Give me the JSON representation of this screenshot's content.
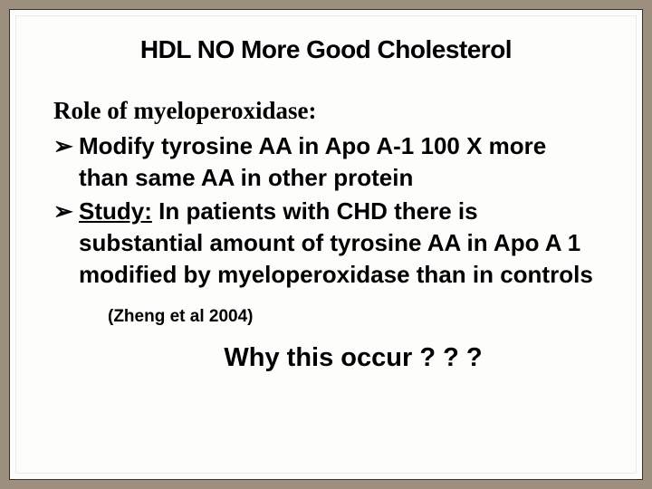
{
  "slide": {
    "title": "HDL NO More Good Cholesterol",
    "title_fontsize": 28,
    "title_color": "#000000",
    "subtitle": "Role of myeloperoxidase:",
    "subtitle_fontsize": 27,
    "subtitle_color": "#000000",
    "bullets": [
      {
        "text": "Modify tyrosine AA in Apo A-1 100 X more than same AA in other protein",
        "study_label": null
      },
      {
        "text": "In patients  with CHD there is substantial amount of tyrosine AA in Apo A 1 modified by myeloperoxidase than in controls",
        "study_label": "Study:"
      }
    ],
    "bullet_fontsize": 26,
    "bullet_color": "#000000",
    "citation": "(Zheng et al 2004)",
    "citation_fontsize": 19,
    "question": "Why this occur ? ? ?",
    "question_fontsize": 29,
    "background_color": "#fdfdfb",
    "outer_background": "#9d8f7e"
  }
}
